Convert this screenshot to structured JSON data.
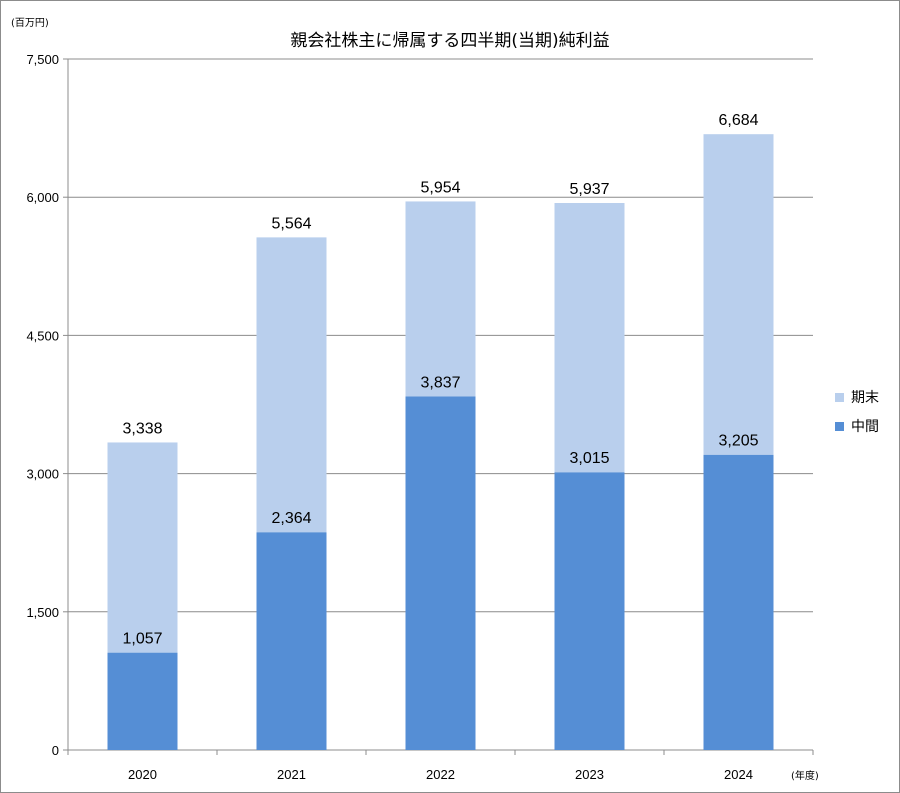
{
  "chart_data": {
    "type": "bar",
    "stacked": true,
    "title": "親会社株主に帰属する四半期(当期)純利益",
    "ylabel": "(百万円)",
    "xlabel": "(年度)",
    "categories": [
      "2020",
      "2021",
      "2022",
      "2023",
      "2024"
    ],
    "ylim": [
      0,
      7500
    ],
    "yticks": [
      0,
      1500,
      3000,
      4500,
      6000,
      7500
    ],
    "ytick_labels": [
      "0",
      "1,500",
      "3,000",
      "4,500",
      "6,000",
      "7,500"
    ],
    "grid": true,
    "legend_position": "right",
    "series": [
      {
        "name": "中間",
        "color": "#558ed5",
        "values": [
          1057,
          2364,
          3837,
          3015,
          3205
        ],
        "labels": [
          "1,057",
          "2,364",
          "3,837",
          "3,015",
          "3,205"
        ]
      },
      {
        "name": "期末",
        "color": "#b9cfed",
        "values": [
          2281,
          3200,
          2117,
          2922,
          3479
        ],
        "labels": [
          "3,338",
          "5,564",
          "5,954",
          "5,937",
          "6,684"
        ]
      }
    ]
  }
}
